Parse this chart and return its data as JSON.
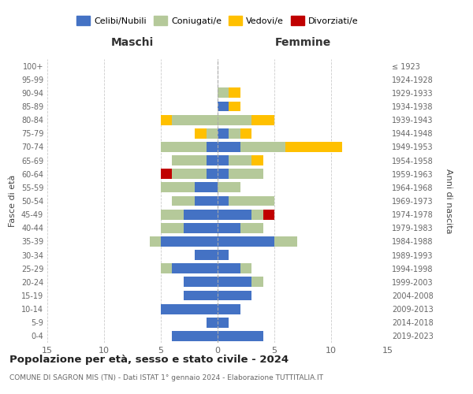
{
  "age_groups": [
    "0-4",
    "5-9",
    "10-14",
    "15-19",
    "20-24",
    "25-29",
    "30-34",
    "35-39",
    "40-44",
    "45-49",
    "50-54",
    "55-59",
    "60-64",
    "65-69",
    "70-74",
    "75-79",
    "80-84",
    "85-89",
    "90-94",
    "95-99",
    "100+"
  ],
  "birth_years": [
    "2019-2023",
    "2014-2018",
    "2009-2013",
    "2004-2008",
    "1999-2003",
    "1994-1998",
    "1989-1993",
    "1984-1988",
    "1979-1983",
    "1974-1978",
    "1969-1973",
    "1964-1968",
    "1959-1963",
    "1954-1958",
    "1949-1953",
    "1944-1948",
    "1939-1943",
    "1934-1938",
    "1929-1933",
    "1924-1928",
    "≤ 1923"
  ],
  "colors": {
    "celibi": "#4472c4",
    "coniugati": "#b5c99a",
    "vedovi": "#ffc000",
    "divorziati": "#c00000"
  },
  "maschi": {
    "celibi": [
      4,
      1,
      5,
      3,
      3,
      4,
      2,
      5,
      3,
      3,
      2,
      2,
      1,
      1,
      1,
      0,
      0,
      0,
      0,
      0,
      0
    ],
    "coniugati": [
      0,
      0,
      0,
      0,
      0,
      1,
      0,
      1,
      2,
      2,
      2,
      3,
      3,
      3,
      4,
      1,
      4,
      0,
      0,
      0,
      0
    ],
    "vedovi": [
      0,
      0,
      0,
      0,
      0,
      0,
      0,
      0,
      0,
      0,
      0,
      0,
      0,
      0,
      0,
      1,
      1,
      0,
      0,
      0,
      0
    ],
    "divorziati": [
      0,
      0,
      0,
      0,
      0,
      0,
      0,
      0,
      0,
      0,
      0,
      0,
      1,
      0,
      0,
      0,
      0,
      0,
      0,
      0,
      0
    ]
  },
  "femmine": {
    "celibi": [
      4,
      1,
      2,
      3,
      3,
      2,
      1,
      5,
      2,
      3,
      1,
      0,
      1,
      1,
      2,
      1,
      0,
      1,
      0,
      0,
      0
    ],
    "coniugati": [
      0,
      0,
      0,
      0,
      1,
      1,
      0,
      2,
      2,
      1,
      4,
      2,
      3,
      2,
      4,
      1,
      3,
      0,
      1,
      0,
      0
    ],
    "vedovi": [
      0,
      0,
      0,
      0,
      0,
      0,
      0,
      0,
      0,
      0,
      0,
      0,
      0,
      1,
      5,
      1,
      2,
      1,
      1,
      0,
      0
    ],
    "divorziati": [
      0,
      0,
      0,
      0,
      0,
      0,
      0,
      0,
      0,
      1,
      0,
      0,
      0,
      0,
      0,
      0,
      0,
      0,
      0,
      0,
      0
    ]
  },
  "title": "Popolazione per età, sesso e stato civile - 2024",
  "subtitle": "COMUNE DI SAGRON MIS (TN) - Dati ISTAT 1° gennaio 2024 - Elaborazione TUTTITALIA.IT",
  "xlabel_left": "Maschi",
  "xlabel_right": "Femmine",
  "ylabel_left": "Fasce di età",
  "ylabel_right": "Anni di nascita",
  "xlim": 15,
  "legend_labels": [
    "Celibi/Nubili",
    "Coniugati/e",
    "Vedovi/e",
    "Divorziati/e"
  ],
  "bg_color": "#ffffff"
}
